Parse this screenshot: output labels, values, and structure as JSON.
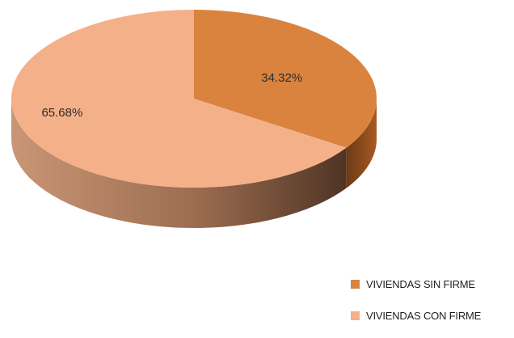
{
  "chart_data": {
    "type": "pie",
    "style": "3d",
    "title": "",
    "slices": [
      {
        "label": "VIVIENDAS SIN FIRME",
        "value": 34.32,
        "display": "34.32%",
        "color": "#d9833f",
        "side_color": "#8a4a1c"
      },
      {
        "label": "VIVIENDAS CON FIRME",
        "value": 65.68,
        "display": "65.68%",
        "color": "#f4b089",
        "side_color": "#9a6a4c"
      }
    ],
    "legend_position": "bottom-right"
  }
}
